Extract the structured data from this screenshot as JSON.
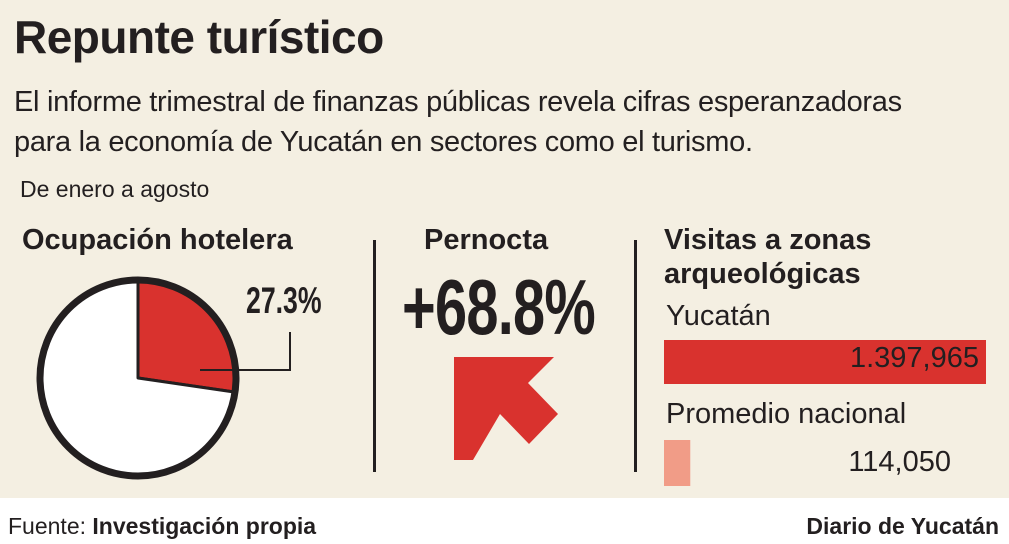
{
  "header": {
    "title": "Repunte turístico",
    "description_line1": "El informe trimestral de finanzas públicas revela cifras esperanzadoras",
    "description_line2": "para la economía de Yucatán en sectores como el turismo.",
    "period": "De enero a agosto"
  },
  "chart_data": [
    {
      "type": "pie",
      "title": "Ocupación hotelera",
      "slices": [
        {
          "label": "27.3%",
          "value": 27.3,
          "color": "#d9322e"
        },
        {
          "value": 72.7,
          "color": "#ffffff"
        }
      ]
    },
    {
      "type": "table",
      "title": "Pernocta",
      "value_label": "+68.8%",
      "value": 68.8,
      "arrow_color": "#d9322e"
    },
    {
      "type": "bar",
      "title": "Visitas a zonas arqueológicas",
      "title_line1": "Visitas a zonas",
      "title_line2": "arqueológicas",
      "categories": [
        "Yucatán",
        "Promedio nacional"
      ],
      "values": [
        1397965,
        114050
      ],
      "value_labels": [
        "1.397,965",
        "114,050"
      ],
      "colors": [
        "#d9322e",
        "#f19c87"
      ]
    }
  ],
  "footer": {
    "source_prefix": "Fuente: ",
    "source_name": "Investigación propia",
    "brand": "Diario de Yucatán"
  },
  "colors": {
    "background": "#f4efe2",
    "accent": "#d9322e",
    "accent_light": "#f19c87",
    "text": "#231f20"
  }
}
